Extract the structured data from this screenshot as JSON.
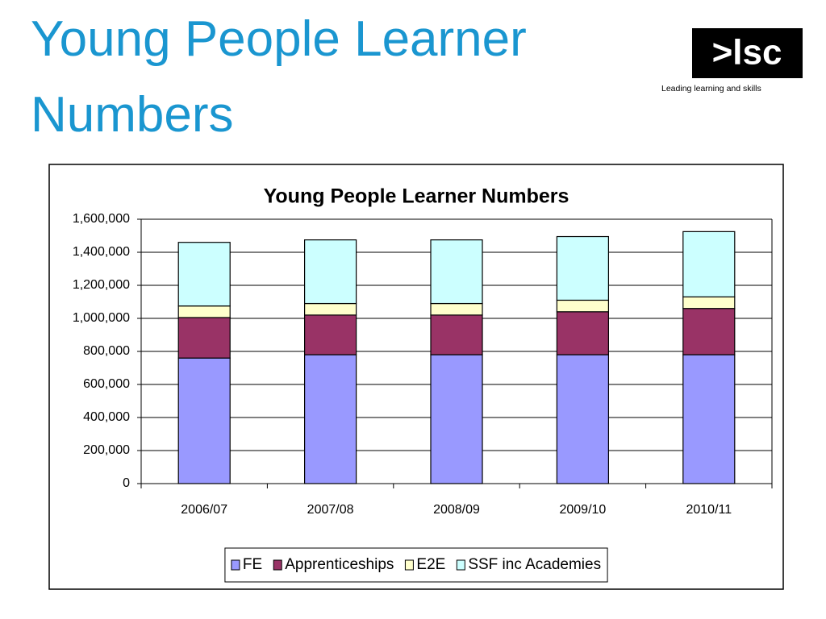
{
  "slide": {
    "title": "Young People Learner Numbers",
    "logo": {
      "text": ">lsc",
      "tagline": "Leading learning and skills"
    }
  },
  "chart_data": {
    "type": "stacked-bar",
    "title": "Young People Learner Numbers",
    "categories": [
      "2006/07",
      "2007/08",
      "2008/09",
      "2009/10",
      "2010/11"
    ],
    "series": [
      {
        "name": "FE",
        "color": "#9999ff",
        "values": [
          760000,
          780000,
          780000,
          780000,
          780000
        ]
      },
      {
        "name": "Apprenticeships",
        "color": "#993366",
        "values": [
          245000,
          240000,
          240000,
          260000,
          280000
        ]
      },
      {
        "name": "E2E",
        "color": "#ffffcc",
        "values": [
          70000,
          70000,
          70000,
          70000,
          70000
        ]
      },
      {
        "name": "SSF inc Academies",
        "color": "#ccffff",
        "values": [
          385000,
          385000,
          385000,
          385000,
          395000
        ]
      }
    ],
    "ylim": [
      0,
      1600000
    ],
    "yticks": [
      0,
      {
        "value": 200000,
        "label": "200,000"
      },
      {
        "value": 400000,
        "label": "400,000"
      },
      {
        "value": 600000,
        "label": "600,000"
      },
      {
        "value": 800000,
        "label": "800,000"
      },
      {
        "value": 1000000,
        "label": "1,000,000"
      },
      {
        "value": 1200000,
        "label": "1,200,000"
      },
      {
        "value": 1400000,
        "label": "1,400,000"
      },
      {
        "value": 1600000,
        "label": "1,600,000"
      }
    ],
    "grid": true,
    "legend": "bottom"
  }
}
